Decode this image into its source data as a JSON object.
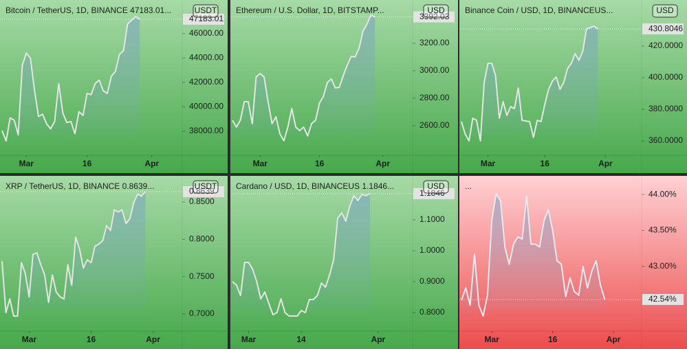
{
  "chart_data": [
    {
      "type": "area",
      "title": "Bitcoin / TetherUS, 1D, BINANCE  47183.01...",
      "currency": "USDT",
      "values": [
        38050,
        37200,
        39100,
        38900,
        37700,
        43400,
        44400,
        44000,
        41400,
        39200,
        39400,
        38600,
        38200,
        38800,
        41900,
        39500,
        38700,
        38800,
        37800,
        39600,
        39300,
        41100,
        41000,
        41900,
        42200,
        41300,
        41100,
        42500,
        42900,
        44300,
        44600,
        46800,
        47100,
        47400,
        47183.01
      ],
      "ylim": [
        36030,
        48760
      ],
      "yticks": [
        {
          "value": 38000,
          "label": "38000.00"
        },
        {
          "value": 40000,
          "label": "40000.00"
        },
        {
          "value": 42000,
          "label": "42000.00"
        },
        {
          "value": 44000,
          "label": "44000.00"
        },
        {
          "value": 46000,
          "label": "46000.00"
        }
      ],
      "xlim": [
        0,
        44
      ],
      "xticks": [
        {
          "value": 6,
          "label": "Mar"
        },
        {
          "value": 21,
          "label": "16"
        },
        {
          "value": 37,
          "label": "Apr"
        }
      ],
      "background": [
        "#a6daa6",
        "#46a84b"
      ],
      "line_color": "#e4e4e4"
    },
    {
      "type": "area",
      "title": "Ethereum / U.S. Dollar, 1D, BITSTAMP...",
      "currency": "USD",
      "values": [
        2640,
        2590,
        2640,
        2775,
        2775,
        2615,
        2955,
        2980,
        2955,
        2775,
        2615,
        2665,
        2540,
        2490,
        2590,
        2725,
        2590,
        2565,
        2590,
        2525,
        2615,
        2640,
        2765,
        2815,
        2915,
        2940,
        2875,
        2880,
        2965,
        3040,
        3105,
        3100,
        3165,
        3290,
        3340,
        3405,
        3392.03
      ],
      "ylim": [
        2385,
        3515
      ],
      "yticks": [
        {
          "value": 2600,
          "label": "2600.00"
        },
        {
          "value": 2800,
          "label": "2800.00"
        },
        {
          "value": 3000,
          "label": "3000.00"
        },
        {
          "value": 3200,
          "label": "3200.00"
        }
      ],
      "xlim": [
        0,
        45
      ],
      "xticks": [
        {
          "value": 7,
          "label": "Mar"
        },
        {
          "value": 22,
          "label": "16"
        },
        {
          "value": 38,
          "label": "Apr"
        }
      ],
      "background": [
        "#a6daa6",
        "#46a84b"
      ],
      "line_color": "#e4e4e4"
    },
    {
      "type": "area",
      "title": "Binance Coin / USD, 1D, BINANCEUS...",
      "currency": "USD",
      "values": [
        372.2,
        364.3,
        360,
        374.3,
        373,
        360,
        397,
        409.1,
        409.1,
        401.3,
        374.3,
        384.8,
        376.1,
        381.7,
        380.4,
        393.5,
        373,
        372.6,
        372.2,
        362.2,
        373,
        372.2,
        383,
        392.6,
        397.8,
        400.4,
        392.6,
        397,
        405.7,
        409.1,
        415.2,
        410.9,
        416.5,
        430.9,
        431.7,
        432.5,
        430.8046
      ],
      "ylim": [
        350.9,
        449.1
      ],
      "yticks": [
        {
          "value": 360,
          "label": "360.0000"
        },
        {
          "value": 380,
          "label": "380.0000"
        },
        {
          "value": 400,
          "label": "400.0000"
        },
        {
          "value": 420,
          "label": "420.0000"
        }
      ],
      "xlim": [
        0,
        47
      ],
      "xticks": [
        {
          "value": 7,
          "label": "Mar"
        },
        {
          "value": 22,
          "label": "16"
        },
        {
          "value": 38,
          "label": "Apr"
        }
      ],
      "background": [
        "#a6daa6",
        "#46a84b"
      ],
      "line_color": "#e4e4e4"
    },
    {
      "type": "area",
      "title": "XRP / TetherUS, 1D, BINANCE  0.8639...",
      "currency": "USDT",
      "values": [
        0.7706,
        0.7018,
        0.7202,
        0.6972,
        0.6972,
        0.7688,
        0.7541,
        0.7229,
        0.7798,
        0.7817,
        0.7661,
        0.7523,
        0.7156,
        0.7523,
        0.7294,
        0.7229,
        0.7202,
        0.7661,
        0.7385,
        0.8028,
        0.7872,
        0.7615,
        0.7725,
        0.7688,
        0.7908,
        0.7936,
        0.7982,
        0.8183,
        0.8119,
        0.8394,
        0.8367,
        0.8394,
        0.8211,
        0.8275,
        0.8486,
        0.8606,
        0.8578,
        0.8639
      ],
      "ylim": [
        0.677,
        0.885
      ],
      "yticks": [
        {
          "value": 0.7,
          "label": "0.7000"
        },
        {
          "value": 0.75,
          "label": "0.7500"
        },
        {
          "value": 0.8,
          "label": "0.8000"
        },
        {
          "value": 0.85,
          "label": "0.8500"
        }
      ],
      "xlim": [
        0,
        46
      ],
      "xticks": [
        {
          "value": 7,
          "label": "Mar"
        },
        {
          "value": 23,
          "label": "16"
        },
        {
          "value": 39,
          "label": "Apr"
        }
      ],
      "background": [
        "#a6daa6",
        "#46a84b"
      ],
      "line_color": "#e4e4e4"
    },
    {
      "type": "area",
      "title": "Cardano / USD, 1D, BINANCEUS  1.1846...",
      "currency": "USD",
      "values": [
        0.9,
        0.8889,
        0.8556,
        0.9622,
        0.9622,
        0.94,
        0.9,
        0.8444,
        0.8667,
        0.8289,
        0.7933,
        0.8,
        0.8444,
        0.8,
        0.7889,
        0.7889,
        0.7889,
        0.8067,
        0.8,
        0.8422,
        0.8422,
        0.8556,
        0.8956,
        0.8822,
        0.9222,
        0.9711,
        1.1044,
        1.1222,
        1.0956,
        1.1444,
        1.1778,
        1.1622,
        1.1822,
        1.1778,
        1.1846
      ],
      "ylim": [
        0.74,
        1.242
      ],
      "yticks": [
        {
          "value": 0.8,
          "label": "0.8000"
        },
        {
          "value": 0.9,
          "label": "0.9000"
        },
        {
          "value": 1,
          "label": "1.0000"
        },
        {
          "value": 1.1,
          "label": "1.1000"
        }
      ],
      "xlim": [
        0,
        44
      ],
      "xticks": [
        {
          "value": 4,
          "label": "Mar"
        },
        {
          "value": 17,
          "label": "14"
        },
        {
          "value": 36,
          "label": "Apr"
        }
      ],
      "background": [
        "#a6daa6",
        "#46a84b"
      ],
      "line_color": "#e4e4e4"
    },
    {
      "type": "area",
      "title": "...",
      "values": [
        42.53,
        42.7,
        42.46,
        43.17,
        42.46,
        42.31,
        42.6,
        43.65,
        44.01,
        43.91,
        43.27,
        43.03,
        43.31,
        43.41,
        43.38,
        43.98,
        43.31,
        43.31,
        43.27,
        43.63,
        43.79,
        43.5,
        43.08,
        43.03,
        42.58,
        42.84,
        42.65,
        42.6,
        43,
        42.7,
        42.93,
        43.08,
        42.74,
        42.54
      ],
      "value_labels": [
        null,
        null,
        null,
        null,
        null,
        null,
        null,
        null,
        null,
        null,
        null,
        null,
        null,
        null,
        null,
        null,
        null,
        null,
        null,
        null,
        null,
        null,
        null,
        null,
        null,
        null,
        null,
        null,
        null,
        null,
        null,
        null,
        null,
        "42.54%"
      ],
      "ylim": [
        42.1,
        44.26
      ],
      "yticks": [
        {
          "value": 43,
          "label": "43.00%"
        },
        {
          "value": 43.5,
          "label": "43.50%"
        },
        {
          "value": 44,
          "label": "44.00%"
        }
      ],
      "xlim": [
        0,
        41
      ],
      "xticks": [
        {
          "value": 7,
          "label": "Mar"
        },
        {
          "value": 21,
          "label": "16"
        },
        {
          "value": 35,
          "label": "Apr"
        }
      ],
      "background": [
        "#ffd0d3",
        "#ec4d4d"
      ],
      "line_color": "#e8e8f0"
    }
  ]
}
